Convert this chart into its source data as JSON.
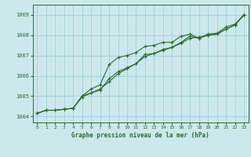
{
  "title": "Graphe pression niveau de la mer (hPa)",
  "bg_color": "#cce8ec",
  "grid_color": "#99ccd4",
  "line_color": "#2d6b2d",
  "xlim": [
    -0.5,
    23.5
  ],
  "ylim": [
    1003.7,
    1009.5
  ],
  "yticks": [
    1004,
    1005,
    1006,
    1007,
    1008,
    1009
  ],
  "xticks": [
    0,
    1,
    2,
    3,
    4,
    5,
    6,
    7,
    8,
    9,
    10,
    11,
    12,
    13,
    14,
    15,
    16,
    17,
    18,
    19,
    20,
    21,
    22,
    23
  ],
  "series1_x": [
    0,
    1,
    2,
    3,
    4,
    5,
    6,
    7,
    8,
    9,
    10,
    11,
    12,
    13,
    14,
    15,
    16,
    17,
    18,
    19,
    20,
    21,
    22,
    23
  ],
  "series1_y": [
    1004.15,
    1004.3,
    1004.3,
    1004.35,
    1004.4,
    1005.0,
    1005.35,
    1005.55,
    1006.55,
    1006.9,
    1007.0,
    1007.15,
    1007.45,
    1007.5,
    1007.65,
    1007.65,
    1007.95,
    1008.05,
    1007.85,
    1008.05,
    1008.1,
    1008.4,
    1008.55,
    1009.0
  ],
  "series2_x": [
    0,
    1,
    2,
    3,
    4,
    5,
    6,
    7,
    8,
    9,
    10,
    11,
    12,
    13,
    14,
    15,
    16,
    17,
    18,
    19,
    20,
    21,
    22,
    23
  ],
  "series2_y": [
    1004.15,
    1004.3,
    1004.3,
    1004.35,
    1004.4,
    1005.0,
    1005.15,
    1005.3,
    1005.85,
    1006.2,
    1006.4,
    1006.6,
    1007.05,
    1007.1,
    1007.3,
    1007.4,
    1007.65,
    1007.95,
    1007.85,
    1008.0,
    1008.05,
    1008.3,
    1008.5,
    1009.0
  ],
  "series3_x": [
    0,
    1,
    2,
    3,
    4,
    5,
    6,
    7,
    8,
    9,
    10,
    11,
    12,
    13,
    14,
    15,
    16,
    17,
    18,
    19,
    20,
    21,
    22,
    23
  ],
  "series3_y": [
    1004.15,
    1004.3,
    1004.3,
    1004.35,
    1004.4,
    1004.95,
    1005.15,
    1005.35,
    1005.7,
    1006.1,
    1006.35,
    1006.6,
    1006.95,
    1007.1,
    1007.25,
    1007.4,
    1007.6,
    1007.85,
    1007.9,
    1008.0,
    1008.05,
    1008.3,
    1008.5,
    1009.0
  ]
}
